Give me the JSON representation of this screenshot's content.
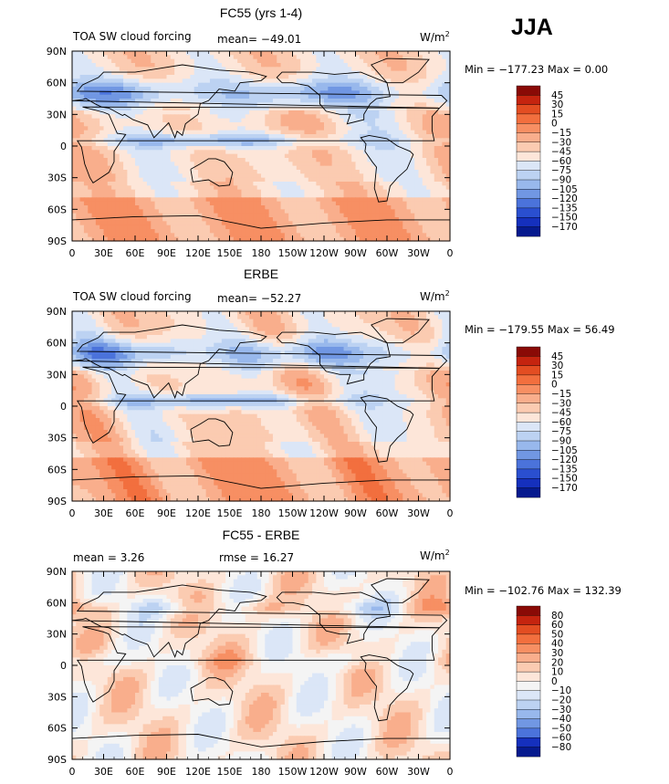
{
  "season": "JJA",
  "panels": [
    {
      "title": "FC55 (yrs 1-4)",
      "field": "TOA SW cloud forcing",
      "stats_left": "",
      "stats_mid": "mean=  −49.01",
      "units": "W/m",
      "units_sup": "2",
      "minmax": "Min = −177.23  Max =    0.00",
      "colorbar_labels": [
        "45",
        "30",
        "15",
        "0",
        "−15",
        "−30",
        "−45",
        "−60",
        "−75",
        "−90",
        "−105",
        "−120",
        "−135",
        "−150",
        "−170"
      ],
      "colorbar_colors": [
        "#8a0a06",
        "#c5240f",
        "#e34d22",
        "#f26f3e",
        "#f78f63",
        "#f9ae8c",
        "#fbcbb1",
        "#fde6d9",
        "#dbe6f7",
        "#bcd2f2",
        "#98b8ec",
        "#7197e3",
        "#4b73db",
        "#2a4fd0",
        "#1530bd",
        "#061a8e"
      ],
      "chart_data": {
        "type": "heatmap",
        "title": "FC55 (yrs 1-4)",
        "variable": "TOA SW cloud forcing",
        "units": "W/m2",
        "mean": -49.01,
        "min": -177.23,
        "max": 0.0,
        "contour_levels": [
          -170,
          -150,
          -135,
          -120,
          -105,
          -90,
          -75,
          -60,
          -45,
          -30,
          -15,
          0,
          15,
          30,
          45
        ]
      }
    },
    {
      "title": "ERBE",
      "field": "TOA SW cloud forcing",
      "stats_left": "",
      "stats_mid": "mean=  −52.27",
      "units": "W/m",
      "units_sup": "2",
      "minmax": "Min = −179.55  Max =   56.49",
      "colorbar_labels": [
        "45",
        "30",
        "15",
        "0",
        "−15",
        "−30",
        "−45",
        "−60",
        "−75",
        "−90",
        "−105",
        "−120",
        "−135",
        "−150",
        "−170"
      ],
      "colorbar_colors": [
        "#8a0a06",
        "#c5240f",
        "#e34d22",
        "#f26f3e",
        "#f78f63",
        "#f9ae8c",
        "#fbcbb1",
        "#fde6d9",
        "#dbe6f7",
        "#bcd2f2",
        "#98b8ec",
        "#7197e3",
        "#4b73db",
        "#2a4fd0",
        "#1530bd",
        "#061a8e"
      ],
      "chart_data": {
        "type": "heatmap",
        "title": "ERBE",
        "variable": "TOA SW cloud forcing",
        "units": "W/m2",
        "mean": -52.27,
        "min": -179.55,
        "max": 56.49,
        "contour_levels": [
          -170,
          -150,
          -135,
          -120,
          -105,
          -90,
          -75,
          -60,
          -45,
          -30,
          -15,
          0,
          15,
          30,
          45
        ]
      }
    },
    {
      "title": "FC55 - ERBE",
      "field": "",
      "stats_left": "mean =     3.26",
      "stats_mid": "rmse =   16.27",
      "units": "W/m",
      "units_sup": "2",
      "minmax": "Min = −102.76  Max = 132.39",
      "colorbar_labels": [
        "80",
        "60",
        "50",
        "40",
        "30",
        "20",
        "10",
        "0",
        "−10",
        "−20",
        "−30",
        "−40",
        "−50",
        "−60",
        "−80"
      ],
      "colorbar_colors": [
        "#8a0a06",
        "#c5240f",
        "#e34d22",
        "#f26f3e",
        "#f78f63",
        "#f9ae8c",
        "#fbcbb1",
        "#fde6d9",
        "#f4f4f4",
        "#dbe6f7",
        "#bcd2f2",
        "#98b8ec",
        "#7197e3",
        "#4b73db",
        "#1530bd",
        "#061a8e"
      ],
      "chart_data": {
        "type": "heatmap",
        "title": "FC55 - ERBE",
        "units": "W/m2",
        "mean": 3.26,
        "rmse": 16.27,
        "min": -102.76,
        "max": 132.39,
        "contour_levels": [
          -80,
          -60,
          -50,
          -40,
          -30,
          -20,
          -10,
          0,
          10,
          20,
          30,
          40,
          50,
          60,
          80
        ]
      }
    }
  ],
  "axes": {
    "lat_ticks": [
      "90N",
      "60N",
      "30N",
      "0",
      "30S",
      "60S",
      "90S"
    ],
    "lon_ticks": [
      "0",
      "30E",
      "60E",
      "90E",
      "120E",
      "150E",
      "180",
      "150W",
      "120W",
      "90W",
      "60W",
      "30W",
      "0"
    ]
  },
  "chart_data": [
    {
      "type": "heatmap",
      "title": "FC55 (yrs 1-4)",
      "mean": -49.01,
      "min": -177.23,
      "max": 0.0,
      "units": "W/m2"
    },
    {
      "type": "heatmap",
      "title": "ERBE",
      "mean": -52.27,
      "min": -179.55,
      "max": 56.49,
      "units": "W/m2"
    },
    {
      "type": "heatmap",
      "title": "FC55 - ERBE",
      "mean": 3.26,
      "rmse": 16.27,
      "min": -102.76,
      "max": 132.39,
      "units": "W/m2"
    }
  ]
}
